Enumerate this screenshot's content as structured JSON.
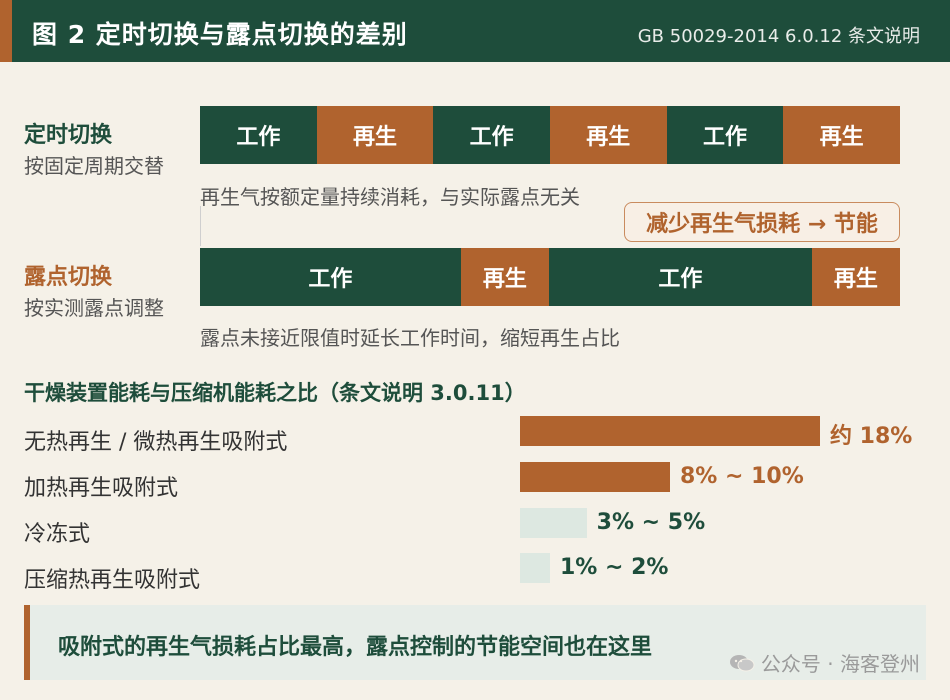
{
  "header": {
    "title": "图 2  定时切换与露点切换的差别",
    "reference": "GB 50029-2014 6.0.12 条文说明"
  },
  "timed": {
    "title": "定时切换",
    "subtitle": "按固定周期交替",
    "segments": [
      {
        "label": "工作",
        "type": "work",
        "share": 1
      },
      {
        "label": "再生",
        "type": "regen",
        "share": 1
      },
      {
        "label": "工作",
        "type": "work",
        "share": 1
      },
      {
        "label": "再生",
        "type": "regen",
        "share": 1
      },
      {
        "label": "工作",
        "type": "work",
        "share": 1
      },
      {
        "label": "再生",
        "type": "regen",
        "share": 1
      }
    ],
    "note": "再生气按额定量持续消耗，与实际露点无关"
  },
  "callout": "减少再生气损耗 → 节能",
  "dewpoint": {
    "title": "露点切换",
    "subtitle": "按实测露点调整",
    "segments": [
      {
        "label": "工作",
        "type": "work",
        "share": 2.6
      },
      {
        "label": "再生",
        "type": "regen",
        "share": 0.88
      },
      {
        "label": "工作",
        "type": "work",
        "share": 2.62
      },
      {
        "label": "再生",
        "type": "regen",
        "share": 0.88
      }
    ],
    "note": "露点未接近限值时延长工作时间，缩短再生占比"
  },
  "ratio": {
    "title": "干燥装置能耗与压缩机能耗之比（条文说明 3.0.11）",
    "items": [
      {
        "label": "无热再生 / 微热再生吸附式",
        "value_text": "约 18%",
        "value": 18
      },
      {
        "label": "加热再生吸附式",
        "value_text": "8% ~ 10%",
        "value": 9
      },
      {
        "label": "冷冻式",
        "value_text": "3% ~ 5%",
        "value": 4
      },
      {
        "label": "压缩热再生吸附式",
        "value_text": "1% ~ 2%",
        "value": 1.5
      }
    ]
  },
  "footer": {
    "text": "吸附式的再生气损耗占比最高，露点控制的节能空间也在这里"
  },
  "watermark": "公众号 · 海客登州",
  "colors": {
    "dark_green": "#1e4d3b",
    "copper": "#b0632e",
    "pale_green": "#dde8e1",
    "background": "#f5f1e8"
  }
}
